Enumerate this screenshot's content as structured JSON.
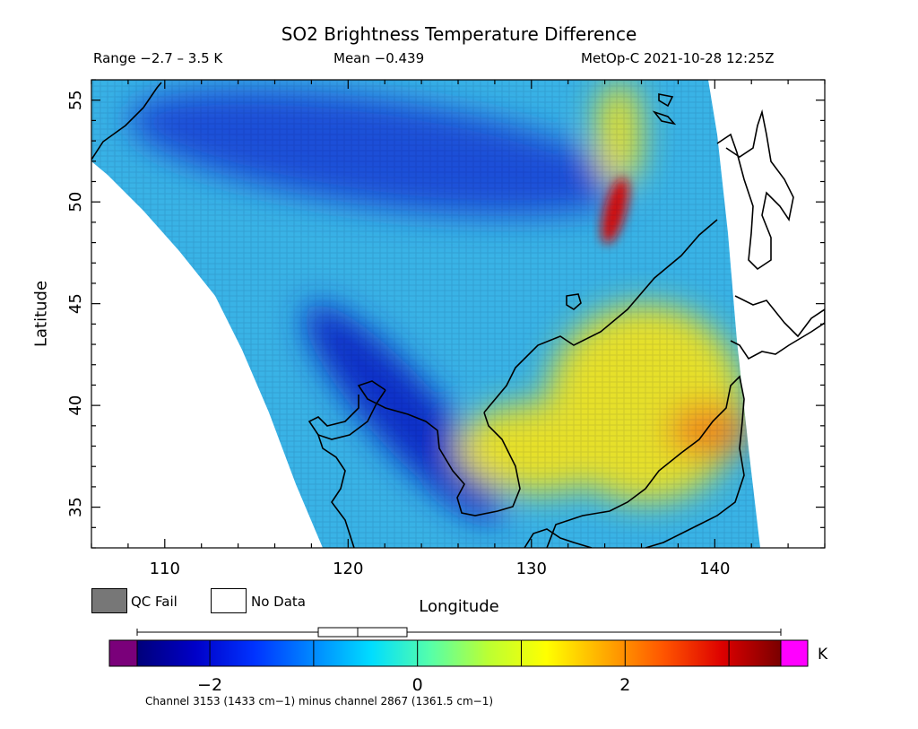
{
  "header": {
    "title": "SO2 Brightness Temperature Difference",
    "range": "Range −2.7 – 3.5 K",
    "mean": "Mean −0.439",
    "satellite": "MetOp-C 2021-10-28 12:25Z"
  },
  "axes": {
    "x_label": "Longitude",
    "y_label": "Latitude",
    "x_ticks": [
      "110",
      "120",
      "130",
      "140"
    ],
    "y_ticks": [
      "55",
      "50",
      "45",
      "40",
      "35"
    ],
    "lon_range": [
      106,
      146
    ],
    "lat_range": [
      33,
      56
    ]
  },
  "legend": {
    "qc_fail": "QC Fail",
    "no_data": "No Data"
  },
  "colorbar": {
    "unit": "K",
    "ticks": [
      "−2",
      "0",
      "2"
    ],
    "min": -2.7,
    "max": 3.5,
    "below_color": "#7a007a",
    "above_color": "#ff00ff",
    "colors": [
      "#00007a",
      "#0000c8",
      "#0033ff",
      "#0088ff",
      "#00ddff",
      "#55ffaa",
      "#bbff33",
      "#ffff00",
      "#ffaa00",
      "#ff5500",
      "#dd0000",
      "#7a0000"
    ]
  },
  "footnote": "Channel 3153 (1433 cm−1) minus channel 2867 (1361.5 cm−1)",
  "map": {
    "field": {
      "background": "#39b3e6",
      "features": [
        {
          "name": "northern-low-band",
          "color": "#1e4fd8"
        },
        {
          "name": "korea-low-band",
          "color": "#0b2fc8"
        },
        {
          "name": "japan-sea-high",
          "color": "#e6e02a"
        },
        {
          "name": "honshu-high",
          "color": "#f08a1a"
        },
        {
          "name": "plume",
          "color": "#d01010"
        }
      ]
    }
  }
}
